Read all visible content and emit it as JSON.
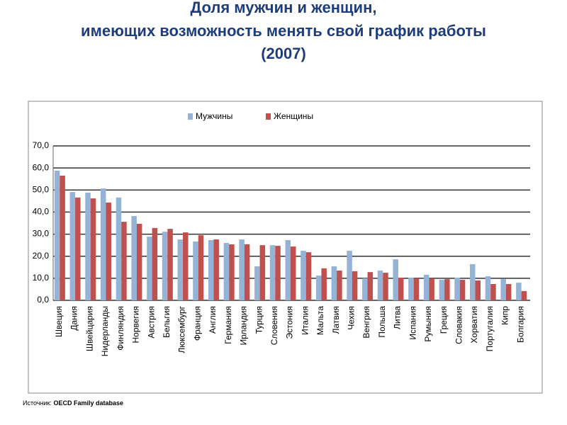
{
  "chart_data": {
    "type": "bar",
    "title": [
      "Доля мужчин и женщин,",
      "имеющих возможность менять свой график работы",
      "(2007)"
    ],
    "categories": [
      "Швеция",
      "Дания",
      "Швейцария",
      "Нидерланды",
      "Финляндия",
      "Норвегия",
      "Австрия",
      "Бельгия",
      "Люксембург",
      "Франция",
      "Англия",
      "Германия",
      "Ирландия",
      "Турция",
      "Словения",
      "Эстония",
      "Италия",
      "Мальта",
      "Латвия",
      "Чехия",
      "Венгрия",
      "Польша",
      "Литва",
      "Испания",
      "Румыния",
      "Греция",
      "Словакия",
      "Хорватия",
      "Португалия",
      "Кипр",
      "Болгария"
    ],
    "series": [
      {
        "name": "Мужчины",
        "color": "#95b3d7",
        "values": [
          58.8,
          49.1,
          48.8,
          50.7,
          46.6,
          38.2,
          28.9,
          31.1,
          27.6,
          26.7,
          27.3,
          26.0,
          27.6,
          15.4,
          25.0,
          27.3,
          22.5,
          11.2,
          15.4,
          22.5,
          10.0,
          13.5,
          18.6,
          10.3,
          11.6,
          9.3,
          10.3,
          16.4,
          10.9,
          9.6,
          8.0
        ]
      },
      {
        "name": "Женщины",
        "color": "#c0504d",
        "values": [
          56.5,
          46.6,
          46.2,
          44.3,
          35.6,
          34.7,
          32.8,
          32.4,
          30.8,
          29.5,
          27.6,
          25.4,
          25.4,
          25.0,
          24.7,
          24.4,
          21.8,
          14.5,
          13.5,
          13.2,
          12.8,
          12.5,
          10.3,
          10.0,
          10.0,
          9.6,
          9.3,
          9.0,
          7.4,
          7.4,
          4.2
        ]
      }
    ],
    "ylim": [
      0,
      70
    ],
    "yticks": [
      {
        "value": 0,
        "label": "0,0"
      },
      {
        "value": 10,
        "label": "10,0"
      },
      {
        "value": 20,
        "label": "20,0"
      },
      {
        "value": 30,
        "label": "30,0"
      },
      {
        "value": 40,
        "label": "40,0"
      },
      {
        "value": 50,
        "label": "50,0"
      },
      {
        "value": 60,
        "label": "60,0"
      },
      {
        "value": 70,
        "label": "70,0"
      }
    ],
    "grid": true,
    "source": {
      "label": "Источник:",
      "text": "OECD Family database"
    }
  }
}
